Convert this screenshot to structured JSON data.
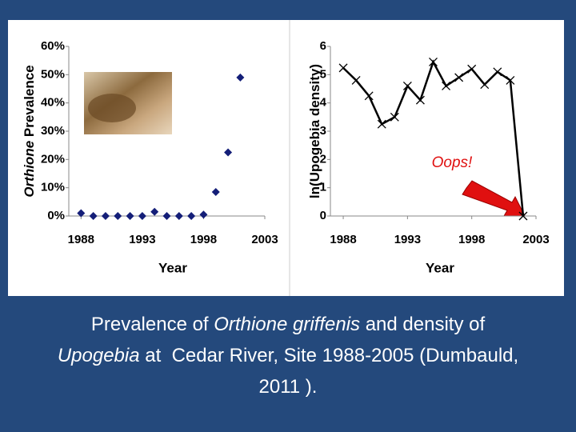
{
  "chart_data": [
    {
      "type": "scatter",
      "x": [
        1988,
        1989,
        1990,
        1991,
        1992,
        1993,
        1994,
        1995,
        1996,
        1997,
        1998,
        1999,
        2000,
        2001
      ],
      "values": [
        1,
        0,
        0,
        0,
        0,
        0,
        1.5,
        0,
        0,
        0,
        0.5,
        8.5,
        22.5,
        49
      ],
      "color": "#141e78",
      "xlim": [
        1987,
        2003
      ],
      "xticks": [
        1988,
        1993,
        1998,
        2003
      ],
      "ylim": [
        0,
        60
      ],
      "yticks": [
        {
          "value": 0,
          "label": "0%"
        },
        {
          "value": 10,
          "label": "10%"
        },
        {
          "value": 20,
          "label": "20%"
        },
        {
          "value": 30,
          "label": "30%"
        },
        {
          "value": 40,
          "label": "40%"
        },
        {
          "value": 50,
          "label": "50%"
        },
        {
          "value": 60,
          "label": "60%"
        }
      ],
      "xlabel": "Year",
      "ylabel": [
        {
          "text": "Orthione",
          "italic": true
        },
        {
          "text": " Prevalence",
          "italic": false
        }
      ]
    },
    {
      "type": "line",
      "x": [
        1988,
        1989,
        1990,
        1991,
        1992,
        1993,
        1994,
        1995,
        1996,
        1997,
        1998,
        1999,
        2000,
        2001,
        2002
      ],
      "values": [
        5.24,
        4.8,
        4.25,
        3.25,
        3.5,
        4.6,
        4.1,
        5.45,
        4.6,
        4.9,
        5.2,
        4.65,
        5.1,
        4.8,
        0
      ],
      "color": "#000000",
      "xlim": [
        1987,
        2003
      ],
      "xticks": [
        1988,
        1993,
        1998,
        2003
      ],
      "ylim": [
        0,
        6
      ],
      "yticks": [
        0,
        1,
        2,
        3,
        4,
        5,
        6
      ],
      "xlabel": "Year",
      "ylabel": [
        {
          "text": "ln(Upogebia density)",
          "italic": false
        }
      ],
      "annotation": "Oops!"
    }
  ],
  "caption": [
    [
      {
        "text": "Prevalence of ",
        "italic": false
      },
      {
        "text": "Orthione griffenis",
        "italic": true
      },
      {
        "text": " and density of",
        "italic": false
      }
    ],
    [
      {
        "text": "Upogebia",
        "italic": true
      },
      {
        "text": " at  Cedar River, Site 1988-2005 (Dumbauld,",
        "italic": false
      }
    ],
    [
      {
        "text": "2011 ).",
        "italic": false
      }
    ]
  ]
}
